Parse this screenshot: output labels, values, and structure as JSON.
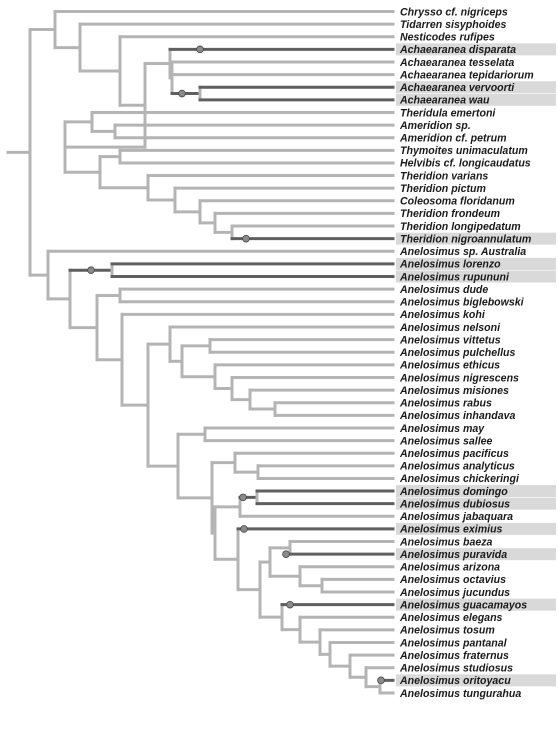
{
  "colors": {
    "branch": "#b4b4b4",
    "highlight_branch": "#5f5f5f",
    "highlight_bar": "#d9d9d9",
    "node_marker": "#8a8a8a",
    "text": "#1a1a1a"
  },
  "taxa": [
    {
      "text": "Chrysso cf. nigriceps"
    },
    {
      "text": "Tidarren sisyphoides"
    },
    {
      "text": "Nesticodes rufipes"
    },
    {
      "text": "Achaearanea disparata",
      "highlight": true
    },
    {
      "text": "Achaearanea tesselata"
    },
    {
      "text": "Achaearanea tepidariorum"
    },
    {
      "text": "Achaearanea vervoorti",
      "highlight": true
    },
    {
      "text": "Achaearanea wau",
      "highlight": true
    },
    {
      "text": "Theridula emertoni"
    },
    {
      "text": "Ameridion sp."
    },
    {
      "text": "Ameridion cf. petrum"
    },
    {
      "text": "Thymoites unimaculatum"
    },
    {
      "text": "Helvibis cf. longicaudatus"
    },
    {
      "text": "Theridion varians"
    },
    {
      "text": "Theridion pictum"
    },
    {
      "text": "Coleosoma floridanum"
    },
    {
      "text": "Theridion frondeum"
    },
    {
      "text": "Theridion longipedatum"
    },
    {
      "text": "Theridion nigroannulatum",
      "highlight": true
    },
    {
      "text": "Anelosimus sp. Australia"
    },
    {
      "text": "Anelosimus lorenzo",
      "highlight": true
    },
    {
      "text": "Anelosimus rupununi",
      "highlight": true
    },
    {
      "text": "Anelosimus dude"
    },
    {
      "text": "Anelosimus biglebowski"
    },
    {
      "text": "Anelosimus kohi"
    },
    {
      "text": "Anelosimus nelsoni"
    },
    {
      "text": "Anelosimus vittetus"
    },
    {
      "text": "Anelosimus pulchellus"
    },
    {
      "text": "Anelosimus ethicus"
    },
    {
      "text": "Anelosimus nigrescens"
    },
    {
      "text": "Anelosimus misiones"
    },
    {
      "text": "Anelosimus rabus"
    },
    {
      "text": "Anelosimus inhandava"
    },
    {
      "text": "Anelosimus may"
    },
    {
      "text": "Anelosimus sallee"
    },
    {
      "text": "Anelosimus pacificus"
    },
    {
      "text": "Anelosimus analyticus"
    },
    {
      "text": "Anelosimus chickeringi"
    },
    {
      "text": "Anelosimus domingo",
      "highlight": true
    },
    {
      "text": "Anelosimus dubiosus",
      "highlight": true
    },
    {
      "text": "Anelosimus jabaquara"
    },
    {
      "text": "Anelosimus eximius",
      "highlight": true
    },
    {
      "text": "Anelosimus baeza"
    },
    {
      "text": "Anelosimus puravida",
      "highlight": true
    },
    {
      "text": "Anelosimus arizona"
    },
    {
      "text": "Anelosimus octavius"
    },
    {
      "text": "Anelosimus jucundus"
    },
    {
      "text": "Anelosimus guacamayos",
      "highlight": true
    },
    {
      "text": "Anelosimus elegans"
    },
    {
      "text": "Anelosimus tosum"
    },
    {
      "text": "Anelosimus pantanal"
    },
    {
      "text": "Anelosimus fraternus"
    },
    {
      "text": "Anelosimus studiosus"
    },
    {
      "text": "Anelosimus oritoyacu",
      "highlight": true
    },
    {
      "text": "Anelosimus tungurahua"
    }
  ]
}
